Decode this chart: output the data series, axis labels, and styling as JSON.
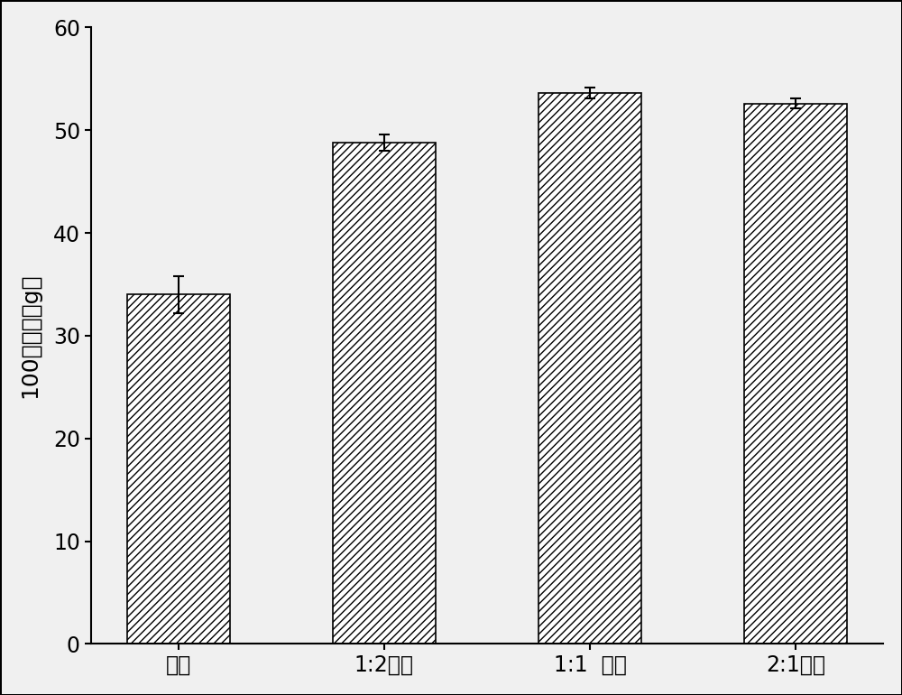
{
  "categories": [
    "对照",
    "1:2稀释",
    "1:1  稀释",
    "2:1稀释"
  ],
  "values": [
    34.0,
    48.8,
    53.6,
    52.6
  ],
  "errors": [
    1.8,
    0.8,
    0.5,
    0.5
  ],
  "ylabel": "100株重量（g）",
  "ylim": [
    0,
    60
  ],
  "yticks": [
    0,
    10,
    20,
    30,
    40,
    50,
    60
  ],
  "bar_color": "#ffffff",
  "bar_edgecolor": "#000000",
  "hatch": "////",
  "bar_width": 0.5,
  "figsize": [
    10.0,
    7.7
  ],
  "dpi": 100,
  "background_color": "#f0f0f0",
  "plot_bg_color": "#f0f0f0",
  "spine_color": "#000000",
  "tick_labelsize": 17,
  "ylabel_fontsize": 18,
  "xlabel_fontsize": 17,
  "capsize": 4,
  "elinewidth": 1.5,
  "ecolor": "#000000"
}
